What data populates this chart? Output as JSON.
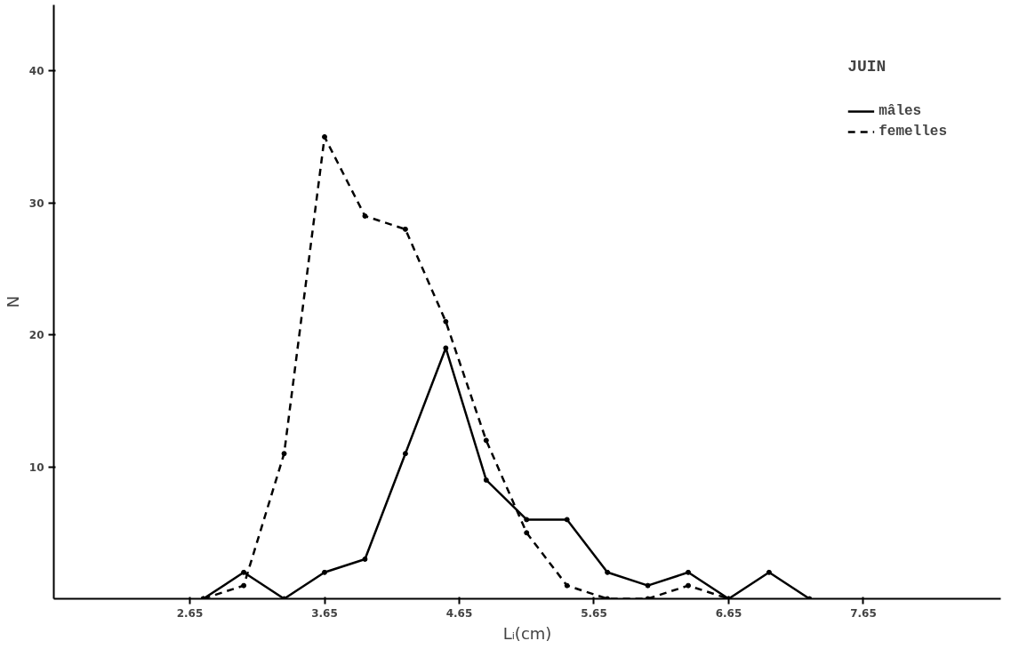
{
  "chart_data": {
    "type": "line",
    "legend_title": "JUIN",
    "xlabel": "Lᵢ(cm)",
    "ylabel": "N",
    "x": [
      2.75,
      3.05,
      3.35,
      3.65,
      3.95,
      4.25,
      4.55,
      4.85,
      5.15,
      5.45,
      5.75,
      6.05,
      6.35,
      6.65,
      6.95,
      7.25
    ],
    "series": [
      {
        "name": "mâles",
        "color": "#000000",
        "line_style": "solid",
        "values": [
          0,
          2,
          0,
          2,
          3,
          11,
          19,
          9,
          6,
          6,
          2,
          1,
          2,
          0,
          2,
          0
        ]
      },
      {
        "name": "femelles",
        "color": "#000000",
        "line_style": "dashed",
        "values": [
          0,
          1,
          11,
          35,
          29,
          28,
          21,
          12,
          5,
          1,
          0,
          0,
          1,
          0,
          null,
          null
        ]
      }
    ],
    "xlim": [
      1.64,
      8.67
    ],
    "ylim": [
      0,
      45
    ],
    "xticks": [
      2.65,
      3.65,
      4.65,
      5.65,
      6.65,
      7.65
    ],
    "yticks": [
      10,
      20,
      30,
      40
    ],
    "grid": false,
    "legend": "top right",
    "marker": "circle"
  }
}
